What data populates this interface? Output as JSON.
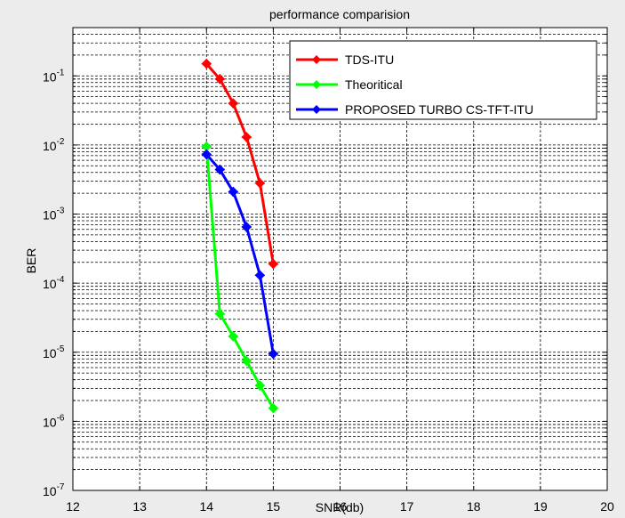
{
  "chart_data": {
    "type": "line",
    "title": "performance comparision",
    "xlabel": "SNR(db)",
    "ylabel": "BER",
    "xlim": [
      12,
      20
    ],
    "ylim": [
      1e-07,
      0.5
    ],
    "yscale": "log",
    "grid": "major-and-minor",
    "legend_position": "top-right",
    "xticks": [
      12,
      13,
      14,
      15,
      16,
      17,
      18,
      19,
      20
    ],
    "xtick_labels": [
      "12",
      "13",
      "14",
      "15",
      "16",
      "17",
      "18",
      "19",
      "20"
    ],
    "yticks": [
      1e-07,
      1e-06,
      1e-05,
      0.0001,
      0.001,
      0.01,
      0.1
    ],
    "ytick_labels": [
      {
        "base": "10",
        "exp": "-7"
      },
      {
        "base": "10",
        "exp": "-6"
      },
      {
        "base": "10",
        "exp": "-5"
      },
      {
        "base": "10",
        "exp": "-4"
      },
      {
        "base": "10",
        "exp": "-3"
      },
      {
        "base": "10",
        "exp": "-2"
      },
      {
        "base": "10",
        "exp": "-1"
      }
    ],
    "series": [
      {
        "name": "TDS-ITU",
        "color": "#ff0000",
        "marker": "diamond",
        "x": [
          14,
          14.2,
          14.4,
          14.6,
          14.8,
          15
        ],
        "y": [
          0.15,
          0.09,
          0.04,
          0.013,
          0.0028,
          0.00019
        ]
      },
      {
        "name": "Theoritical",
        "color": "#00ff00",
        "marker": "diamond",
        "x": [
          14,
          14.2,
          14.4,
          14.6,
          14.8,
          15
        ],
        "y": [
          0.0095,
          3.6e-05,
          1.7e-05,
          7.5e-06,
          3.3e-06,
          1.55e-06
        ]
      },
      {
        "name": "PROPOSED TURBO CS-TFT-ITU",
        "color": "#0000ff",
        "marker": "diamond",
        "x": [
          14,
          14.2,
          14.4,
          14.6,
          14.8,
          15
        ],
        "y": [
          0.0073,
          0.0044,
          0.0021,
          0.00065,
          0.00013,
          9.5e-06
        ]
      }
    ]
  }
}
